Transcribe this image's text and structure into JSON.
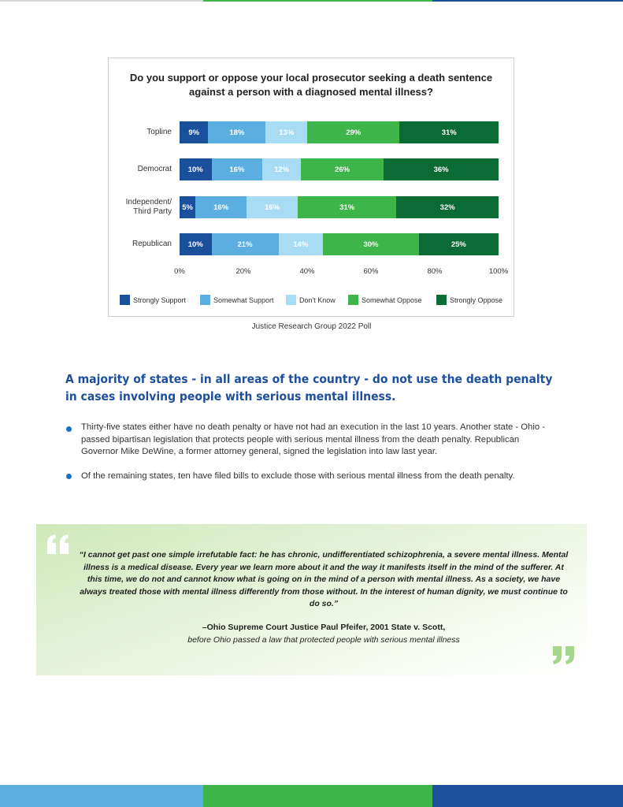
{
  "chart_data": {
    "type": "bar",
    "orientation": "horizontal",
    "stacked": true,
    "title": "Do you support or oppose your local prosecutor seeking a death sentence against a person with a diagnosed mental illness?",
    "categories": [
      "Topline",
      "Democrat",
      "Independent/ Third Party",
      "Republican"
    ],
    "series": [
      {
        "name": "Strongly Support",
        "color": "#1a4f9c",
        "values": [
          9,
          10,
          5,
          10
        ],
        "value_labels": [
          "9%",
          "10%",
          "5%",
          "10%"
        ]
      },
      {
        "name": "Somewhat Support",
        "color": "#5aaee0",
        "values": [
          18,
          16,
          16,
          21
        ],
        "value_labels": [
          "18%",
          "16%",
          "16%",
          "21%"
        ]
      },
      {
        "name": "Don't Know",
        "color": "#a8dcf5",
        "values": [
          13,
          12,
          16,
          14
        ],
        "value_labels": [
          "13%",
          "12%",
          "16%",
          "14%"
        ]
      },
      {
        "name": "Somewhat Oppose",
        "color": "#3db54a",
        "values": [
          29,
          26,
          31,
          30
        ],
        "value_labels": [
          "29%",
          "26%",
          "31%",
          "30%"
        ]
      },
      {
        "name": "Strongly Oppose",
        "color": "#0b6b35",
        "values": [
          31,
          36,
          32,
          25
        ],
        "value_labels": [
          "31%",
          "36%",
          "32%",
          "25%"
        ]
      }
    ],
    "xlim": [
      0,
      100
    ],
    "xticks": [
      {
        "value": 0,
        "label": "0%"
      },
      {
        "value": 20,
        "label": "20%"
      },
      {
        "value": 40,
        "label": "40%"
      },
      {
        "value": 60,
        "label": "60%"
      },
      {
        "value": 80,
        "label": "80%"
      },
      {
        "value": 100,
        "label": "100%"
      }
    ],
    "source": "Justice Research Group 2022 Poll"
  },
  "heading": "A majority of states - in all areas of the country - do not use the death penalty in cases involving people with serious mental illness.",
  "bullets": [
    "Thirty-five states either have no death penalty or have not had an execution in the last 10 years. Another state - Ohio - passed bipartisan legislation that protects people with serious mental illness from the death penalty. Republican Governor Mike DeWine, a former attorney general, signed the legislation into law last year.",
    "Of the remaining states, ten have filed bills to exclude those with serious mental illness from the death penalty."
  ],
  "quote": {
    "text": "“I cannot get past one simple irrefutable fact: he has chronic, undifferentiated schizophrenia, a severe mental illness. Mental illness is a medical disease. Every year we learn more about it and the way it manifests itself in the mind of the sufferer. At this time, we do not and cannot know what is going on in the mind of a person with mental illness. As a society, we have always treated those with mental illness differently from those without. In the interest of human dignity, we must continue to do so.”",
    "attribution": "–Ohio Supreme Court Justice Paul Pfeifer, 2001 State v. Scott,",
    "context": "before Ohio passed a law that protected people with serious mental illness"
  }
}
